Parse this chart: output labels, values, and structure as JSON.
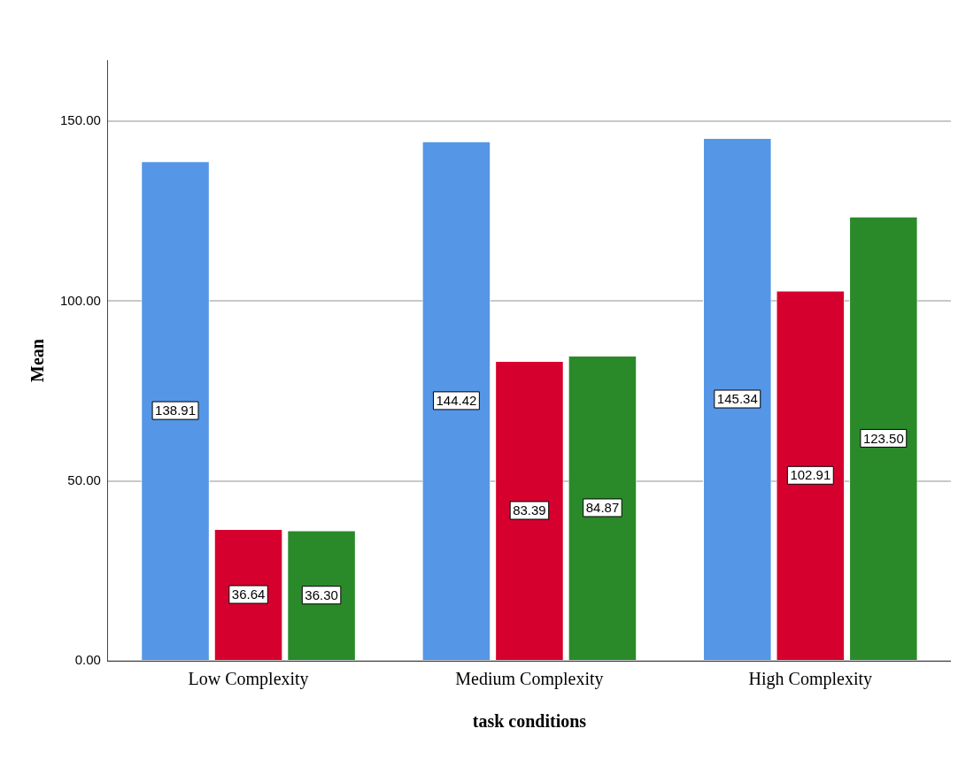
{
  "chart_data": {
    "type": "bar",
    "xlabel": "task conditions",
    "ylabel": "Mean",
    "categories": [
      "Low Complexity",
      "Medium Complexity",
      "High Complexity"
    ],
    "series": [
      {
        "color": "#5596e6",
        "values": [
          138.91,
          144.42,
          145.34
        ],
        "value_labels": [
          "138.91",
          "144.42",
          "145.34"
        ]
      },
      {
        "color": "#d6002f",
        "values": [
          36.64,
          83.39,
          102.91
        ],
        "value_labels": [
          "36.64",
          "83.39",
          "102.91"
        ]
      },
      {
        "color": "#2a8a2a",
        "values": [
          36.3,
          84.87,
          123.5
        ],
        "value_labels": [
          "36.30",
          "84.87",
          "123.50"
        ]
      }
    ],
    "ylim": [
      0,
      167
    ],
    "yticks": [
      {
        "value": 0,
        "label": "0.00"
      },
      {
        "value": 50,
        "label": "50.00"
      },
      {
        "value": 100,
        "label": "100.00"
      },
      {
        "value": 150,
        "label": "150.00"
      }
    ],
    "grid": "y",
    "legend": false
  }
}
